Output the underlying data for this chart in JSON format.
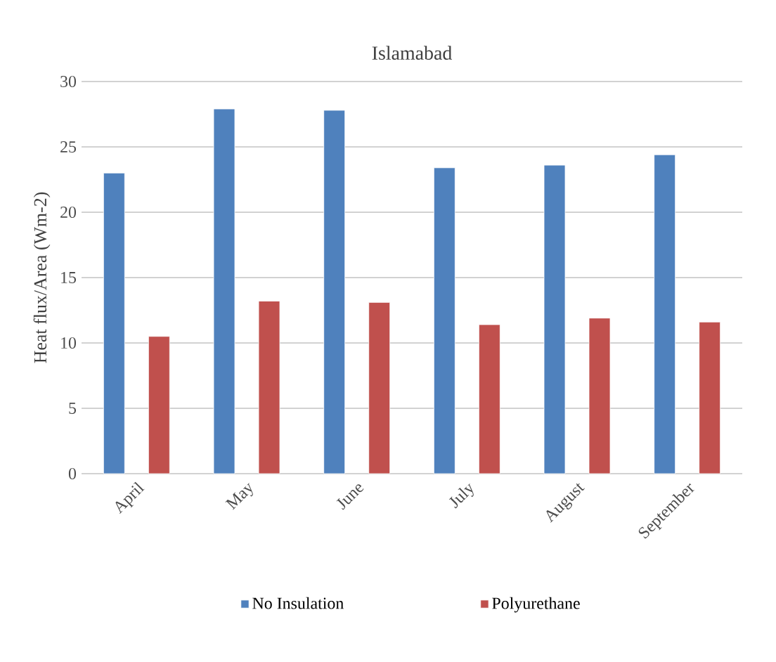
{
  "chart_data": {
    "type": "bar",
    "title": "Islamabad",
    "ylabel": "Heat flux/Area (Wm-2)",
    "categories": [
      "April",
      "May",
      "June",
      "July",
      "August",
      "September"
    ],
    "series": [
      {
        "name": "No Insulation",
        "color": "#4f81bd",
        "values": [
          23.0,
          27.9,
          27.8,
          23.4,
          23.6,
          24.4
        ]
      },
      {
        "name": "Polyurethane",
        "color": "#c0504d",
        "values": [
          10.5,
          13.2,
          13.1,
          11.4,
          11.9,
          11.6
        ]
      }
    ],
    "ylim": [
      0,
      30
    ],
    "yticks": [
      0,
      5,
      10,
      15,
      20,
      25,
      30
    ],
    "grid": "y",
    "legend": "bottom"
  }
}
